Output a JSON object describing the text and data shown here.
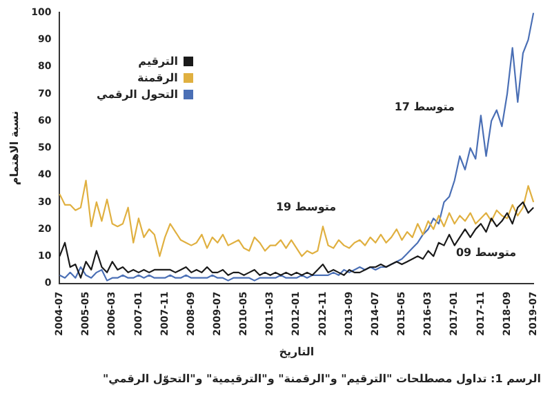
{
  "chart_data": {
    "type": "line",
    "xlabel": "التاريخ",
    "ylabel": "نسبة الاهتمام",
    "categories": [
      "2004-07",
      null,
      null,
      null,
      null,
      "2005-05",
      null,
      null,
      null,
      null,
      "2006-03",
      null,
      null,
      null,
      null,
      "2007-01",
      null,
      null,
      null,
      null,
      "2007-11",
      null,
      null,
      null,
      null,
      "2008-09",
      null,
      null,
      null,
      null,
      "2009-07",
      null,
      null,
      null,
      null,
      "2010-05",
      null,
      null,
      null,
      null,
      "2011-03",
      null,
      null,
      null,
      null,
      "2012-01",
      null,
      null,
      null,
      null,
      "2012-11",
      null,
      null,
      null,
      null,
      "2013-09",
      null,
      null,
      null,
      null,
      "2014-07",
      null,
      null,
      null,
      null,
      "2015-05",
      null,
      null,
      null,
      null,
      "2016-03",
      null,
      null,
      null,
      null,
      "2017-01",
      null,
      null,
      null,
      null,
      "2017-11",
      null,
      null,
      null,
      null,
      "2018-09",
      null,
      null,
      null,
      null,
      "2019-07"
    ],
    "series": [
      {
        "name": "الترقيم",
        "color": "#1a1a1a",
        "values": [
          10,
          15,
          6,
          7,
          2,
          8,
          5,
          12,
          6,
          4,
          8,
          5,
          6,
          4,
          5,
          4,
          5,
          4,
          5,
          5,
          5,
          5,
          4,
          5,
          6,
          4,
          5,
          4,
          6,
          4,
          4,
          5,
          3,
          4,
          4,
          3,
          4,
          5,
          3,
          4,
          3,
          4,
          3,
          4,
          3,
          4,
          3,
          4,
          3,
          5,
          7,
          4,
          5,
          4,
          3,
          5,
          4,
          4,
          5,
          6,
          6,
          7,
          6,
          7,
          8,
          7,
          8,
          9,
          10,
          9,
          12,
          10,
          15,
          14,
          18,
          14,
          17,
          20,
          17,
          20,
          22,
          19,
          24,
          21,
          23,
          26,
          22,
          28,
          30,
          26,
          28
        ]
      },
      {
        "name": "الرقمنة",
        "color": "#e0b040",
        "values": [
          33,
          29,
          29,
          27,
          28,
          38,
          21,
          30,
          23,
          31,
          22,
          21,
          22,
          28,
          15,
          24,
          17,
          20,
          18,
          10,
          17,
          22,
          19,
          16,
          15,
          14,
          15,
          18,
          13,
          17,
          15,
          18,
          14,
          15,
          16,
          13,
          12,
          17,
          15,
          12,
          14,
          14,
          16,
          13,
          16,
          13,
          10,
          12,
          11,
          12,
          21,
          14,
          13,
          16,
          14,
          13,
          15,
          16,
          14,
          17,
          15,
          18,
          15,
          17,
          20,
          16,
          19,
          17,
          22,
          18,
          23,
          20,
          25,
          21,
          26,
          22,
          25,
          23,
          26,
          22,
          24,
          26,
          23,
          27,
          25,
          24,
          29,
          25,
          28,
          36,
          30
        ]
      },
      {
        "name": "التحول الرقمي",
        "color": "#4a6fb5",
        "values": [
          3,
          2,
          4,
          2,
          6,
          3,
          2,
          4,
          5,
          1,
          2,
          2,
          3,
          2,
          2,
          3,
          2,
          3,
          2,
          2,
          2,
          3,
          2,
          2,
          3,
          2,
          2,
          2,
          2,
          3,
          2,
          2,
          1,
          2,
          2,
          2,
          2,
          1,
          2,
          2,
          2,
          2,
          3,
          2,
          2,
          2,
          3,
          2,
          3,
          3,
          3,
          3,
          4,
          3,
          5,
          4,
          5,
          6,
          5,
          6,
          5,
          6,
          6,
          7,
          8,
          9,
          11,
          13,
          15,
          18,
          20,
          24,
          22,
          30,
          32,
          38,
          47,
          42,
          50,
          46,
          62,
          47,
          60,
          64,
          58,
          70,
          87,
          67,
          85,
          90,
          100
        ]
      }
    ],
    "ylim": [
      0,
      100
    ],
    "yticks": [
      0,
      10,
      20,
      30,
      40,
      50,
      60,
      70,
      80,
      90,
      100
    ],
    "grid": false,
    "legend": "top left",
    "marker": "none",
    "line_style": "solid",
    "annotations": [
      "متوسط 17",
      "متوسط 19",
      "متوسط 09",
      "الرسم 1: تداول مصطلحات \"الترقيم\" و\"الرقمنة\" و\"الترقيمية\" و\"التحوّل الرقمي\""
    ]
  }
}
